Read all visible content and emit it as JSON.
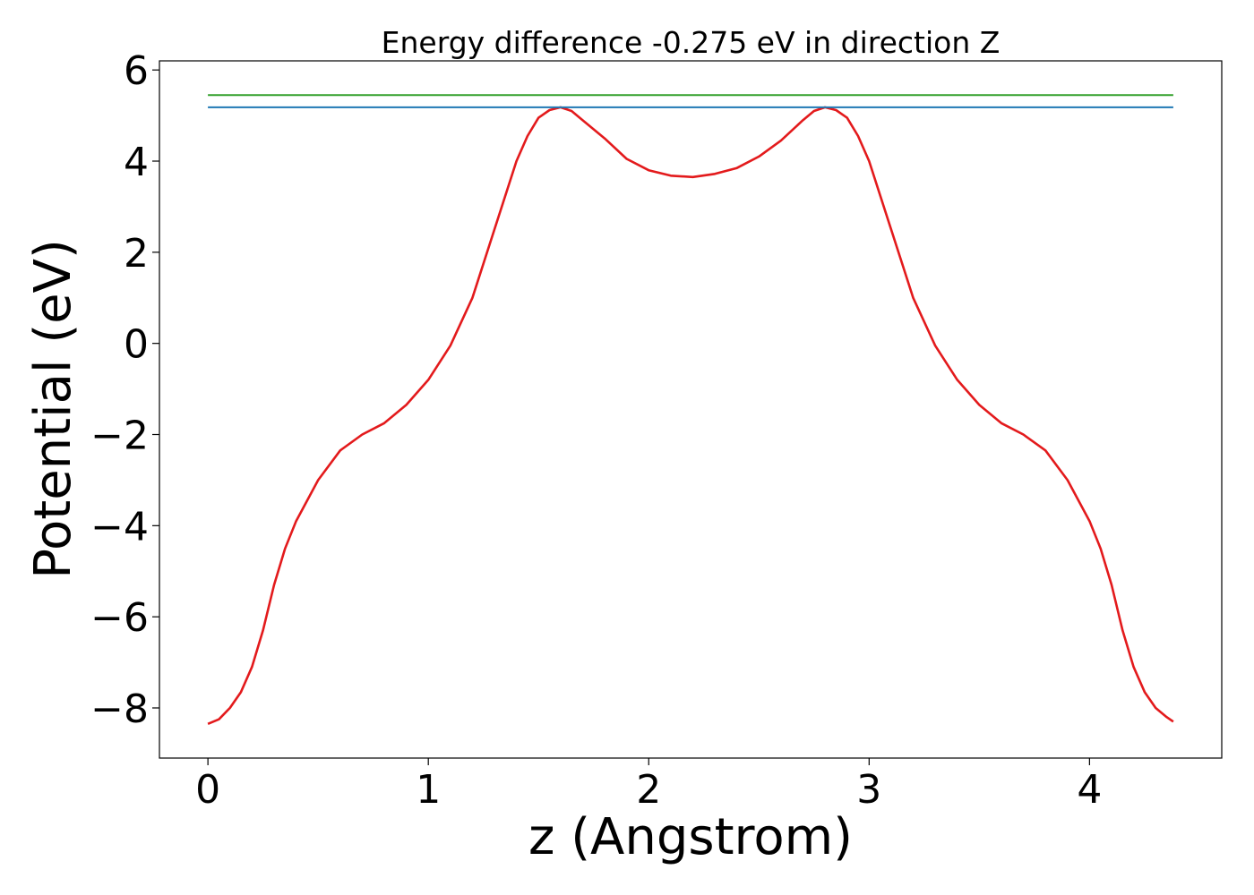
{
  "chart_data": {
    "type": "line",
    "title": "Energy difference -0.275 eV in direction Z",
    "xlabel": "z (Angstrom)",
    "ylabel": "Potential (eV)",
    "xlim": [
      -0.22,
      4.6
    ],
    "ylim": [
      -9.1,
      6.2
    ],
    "xticks": [
      0,
      1,
      2,
      3,
      4
    ],
    "xtick_labels": [
      "0",
      "1",
      "2",
      "3",
      "4"
    ],
    "yticks": [
      6,
      4,
      2,
      0,
      -2,
      -4,
      -6,
      -8
    ],
    "ytick_labels": [
      "6",
      "4",
      "2",
      "0",
      "−2",
      "−4",
      "−6",
      "−8"
    ],
    "grid": false,
    "legend": "none",
    "colors": {
      "potential": "#e31a1c",
      "level_upper": "#33a02c",
      "level_lower": "#1f78b4",
      "axes": "#000000",
      "background": "#ffffff"
    },
    "series": [
      {
        "key": "potential",
        "x": [
          0.0,
          0.05,
          0.1,
          0.15,
          0.2,
          0.25,
          0.3,
          0.35,
          0.4,
          0.5,
          0.6,
          0.7,
          0.8,
          0.9,
          1.0,
          1.1,
          1.2,
          1.3,
          1.4,
          1.45,
          1.5,
          1.55,
          1.6,
          1.65,
          1.7,
          1.8,
          1.9,
          2.0,
          2.1,
          2.2,
          2.3,
          2.4,
          2.5,
          2.6,
          2.7,
          2.75,
          2.8,
          2.85,
          2.9,
          2.95,
          3.0,
          3.1,
          3.2,
          3.3,
          3.4,
          3.5,
          3.6,
          3.7,
          3.8,
          3.9,
          4.0,
          4.05,
          4.1,
          4.15,
          4.2,
          4.25,
          4.3,
          4.35,
          4.38
        ],
        "y": [
          -8.35,
          -8.25,
          -8.0,
          -7.65,
          -7.1,
          -6.3,
          -5.3,
          -4.5,
          -3.9,
          -3.0,
          -2.35,
          -2.0,
          -1.75,
          -1.35,
          -0.8,
          -0.05,
          1.0,
          2.5,
          4.0,
          4.55,
          4.95,
          5.12,
          5.18,
          5.1,
          4.9,
          4.5,
          4.05,
          3.8,
          3.68,
          3.65,
          3.72,
          3.85,
          4.1,
          4.45,
          4.9,
          5.1,
          5.18,
          5.12,
          4.95,
          4.55,
          4.0,
          2.5,
          1.0,
          -0.05,
          -0.8,
          -1.35,
          -1.75,
          -2.0,
          -2.35,
          -3.0,
          -3.9,
          -4.5,
          -5.3,
          -6.3,
          -7.1,
          -7.65,
          -8.0,
          -8.2,
          -8.3
        ]
      },
      {
        "key": "level_upper",
        "x": [
          0.0,
          4.38
        ],
        "y": [
          5.45,
          5.45
        ]
      },
      {
        "key": "level_lower",
        "x": [
          0.0,
          4.38
        ],
        "y": [
          5.18,
          5.18
        ]
      }
    ]
  }
}
